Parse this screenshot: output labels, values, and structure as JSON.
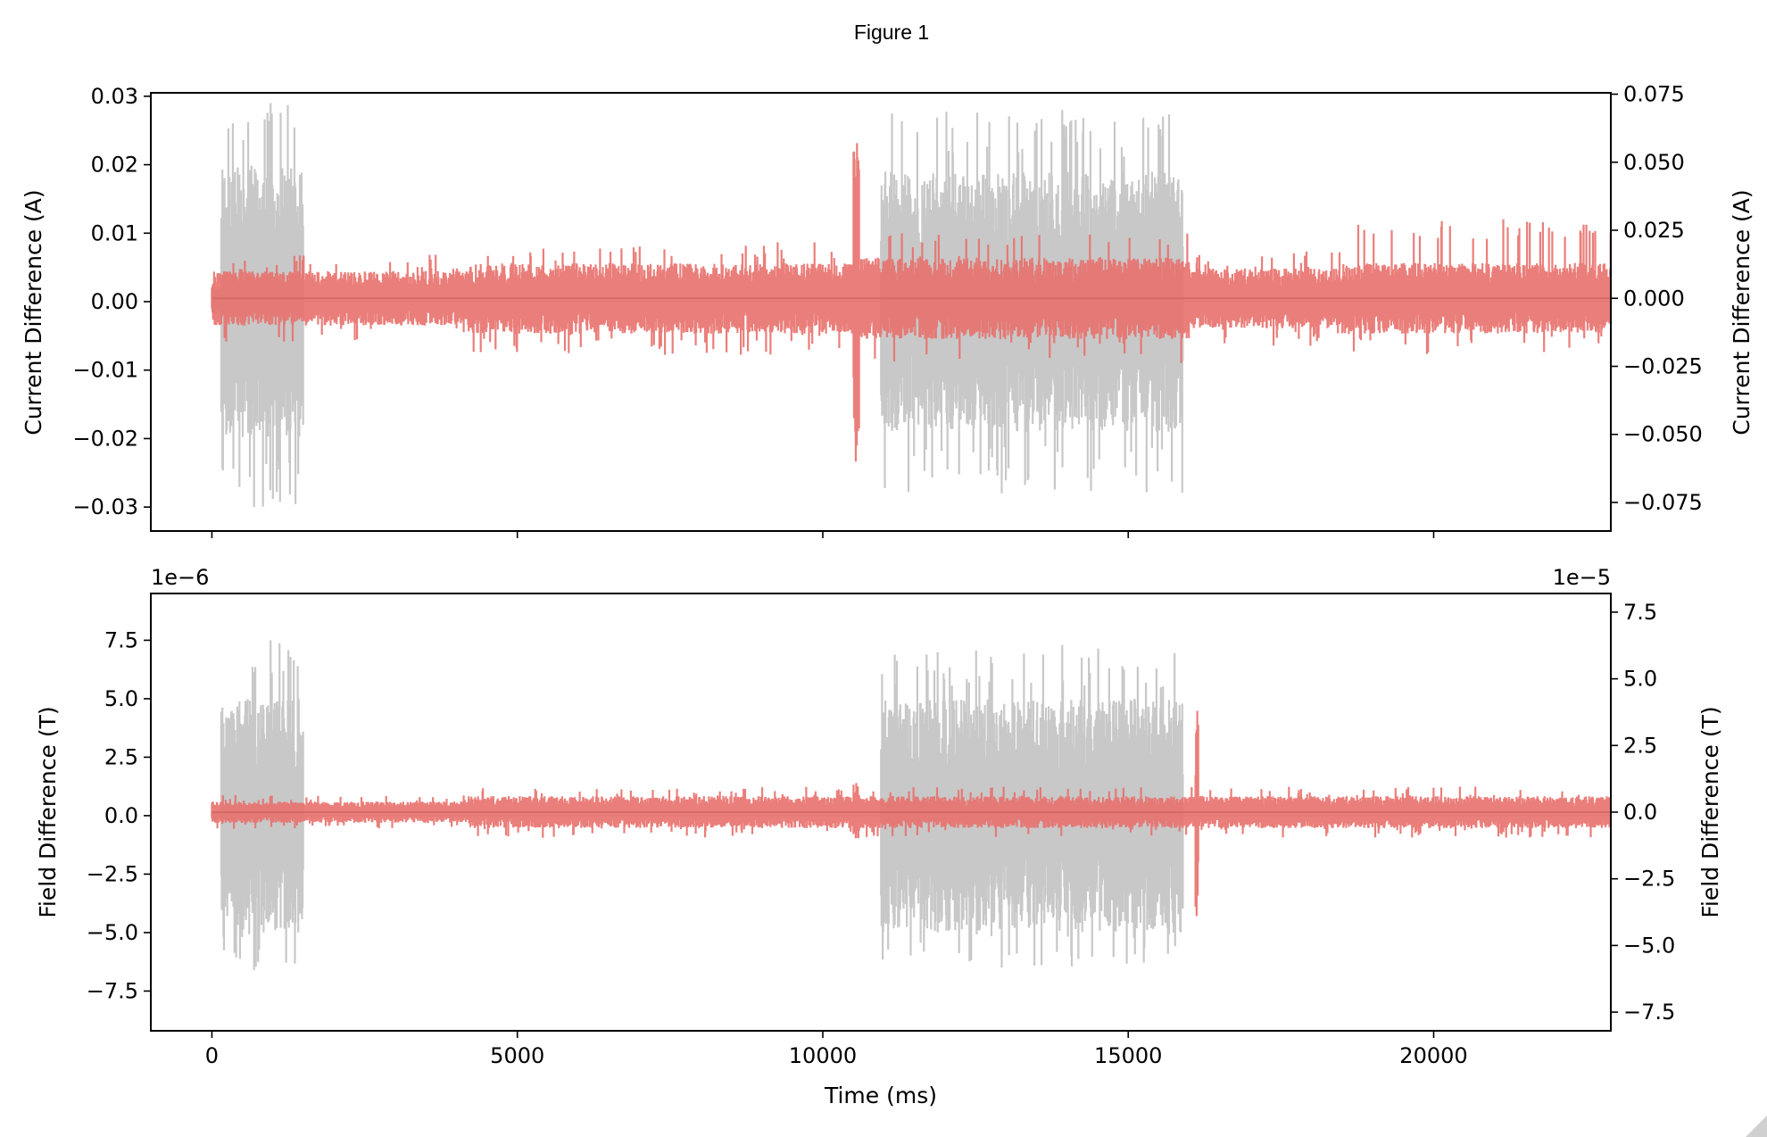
{
  "window": {
    "title": "Figure 1"
  },
  "colors": {
    "grey_trace": "#c8c8c8",
    "red_trace": "#e8706c",
    "axes": "#000000"
  },
  "chart_data": [
    {
      "type": "line",
      "panel": "top",
      "x_label": "",
      "y_label_left": "Current Difference (A)",
      "y_label_right": "Current Difference (A)",
      "xlim": [
        -1000,
        22900
      ],
      "ylim_left": [
        -0.0335,
        0.0305
      ],
      "ylim_right": [
        -0.0855,
        0.0755
      ],
      "x_ticks": [
        0,
        5000,
        10000,
        15000,
        20000
      ],
      "x_tick_labels_visible": false,
      "y_ticks_left": [
        -0.03,
        -0.02,
        -0.01,
        0.0,
        0.01,
        0.02,
        0.03
      ],
      "y_tick_labels_left": [
        "−0.03",
        "−0.02",
        "−0.01",
        "0.00",
        "0.01",
        "0.02",
        "0.03"
      ],
      "y_ticks_right": [
        -0.075,
        -0.05,
        -0.025,
        0.0,
        0.025,
        0.05,
        0.075
      ],
      "y_tick_labels_right": [
        "−0.075",
        "−0.050",
        "−0.025",
        "0.000",
        "0.025",
        "0.050",
        "0.075"
      ],
      "series": [
        {
          "axis": "left",
          "color": "#c8c8c8",
          "x_range": [
            0,
            22900
          ],
          "envelope": [
            {
              "x0": 0,
              "x1": 150,
              "amp": 0.002
            },
            {
              "x0": 150,
              "x1": 1500,
              "amp": 0.02,
              "peak_max": 0.029,
              "peak_min": -0.03
            },
            {
              "x0": 1500,
              "x1": 10950,
              "amp": 0.0
            },
            {
              "x0": 10950,
              "x1": 15900,
              "amp": 0.019,
              "peak_max": 0.028,
              "peak_min": -0.028
            },
            {
              "x0": 15900,
              "x1": 22900,
              "amp": 0.0
            }
          ]
        },
        {
          "axis": "right",
          "color": "#e8706c",
          "x_range": [
            0,
            22900
          ],
          "envelope": [
            {
              "x0": 0,
              "x1": 4200,
              "amp": 0.01
            },
            {
              "x0": 4200,
              "x1": 10500,
              "amp": 0.013
            },
            {
              "x0": 10500,
              "x1": 10600,
              "amp": 0.055,
              "peak_max": 0.057,
              "peak_min": -0.06
            },
            {
              "x0": 10600,
              "x1": 16000,
              "amp": 0.015
            },
            {
              "x0": 16000,
              "x1": 18500,
              "amp": 0.011
            },
            {
              "x0": 18500,
              "x1": 22900,
              "amp": 0.013,
              "peak_max": 0.029
            }
          ]
        }
      ]
    },
    {
      "type": "line",
      "panel": "bottom",
      "x_label": "Time (ms)",
      "y_label_left": "Field Difference (T)",
      "y_label_right": "Field Difference (T)",
      "left_offset_text": "1e−6",
      "right_offset_text": "1e−5",
      "xlim": [
        -1000,
        22900
      ],
      "ylim_left": [
        -9.2,
        9.5
      ],
      "ylim_right": [
        -8.2,
        8.2
      ],
      "x_ticks": [
        0,
        5000,
        10000,
        15000,
        20000
      ],
      "x_tick_labels": [
        "0",
        "5000",
        "10000",
        "15000",
        "20000"
      ],
      "y_ticks_left": [
        -7.5,
        -5.0,
        -2.5,
        0.0,
        2.5,
        5.0,
        7.5
      ],
      "y_tick_labels_left": [
        "−7.5",
        "−5.0",
        "−2.5",
        "0.0",
        "2.5",
        "5.0",
        "7.5"
      ],
      "y_ticks_right": [
        -7.5,
        -5.0,
        -2.5,
        0.0,
        2.5,
        5.0,
        7.5
      ],
      "y_tick_labels_right": [
        "−7.5",
        "−5.0",
        "−2.5",
        "0.0",
        "2.5",
        "5.0",
        "7.5"
      ],
      "series": [
        {
          "axis": "left",
          "color": "#c8c8c8",
          "x_range": [
            0,
            22900
          ],
          "envelope": [
            {
              "x0": 0,
              "x1": 150,
              "amp": 0.2
            },
            {
              "x0": 150,
              "x1": 1500,
              "amp": 5.0,
              "peak_max": 7.5,
              "peak_min": -6.6
            },
            {
              "x0": 1500,
              "x1": 10950,
              "amp": 0.0
            },
            {
              "x0": 10950,
              "x1": 15900,
              "amp": 5.0,
              "peak_max": 7.3,
              "peak_min": -6.5
            },
            {
              "x0": 15900,
              "x1": 22900,
              "amp": 0.0
            }
          ]
        },
        {
          "axis": "right",
          "color": "#e8706c",
          "x_range": [
            0,
            22900
          ],
          "envelope": [
            {
              "x0": 0,
              "x1": 4200,
              "amp": 0.4
            },
            {
              "x0": 4200,
              "x1": 10500,
              "amp": 0.6
            },
            {
              "x0": 10500,
              "x1": 10600,
              "amp": 1.1
            },
            {
              "x0": 10600,
              "x1": 16100,
              "amp": 0.6
            },
            {
              "x0": 16100,
              "x1": 16150,
              "amp": 3.6,
              "peak_max": 3.8,
              "peak_min": -3.9
            },
            {
              "x0": 16150,
              "x1": 22900,
              "amp": 0.6
            }
          ]
        }
      ]
    }
  ]
}
